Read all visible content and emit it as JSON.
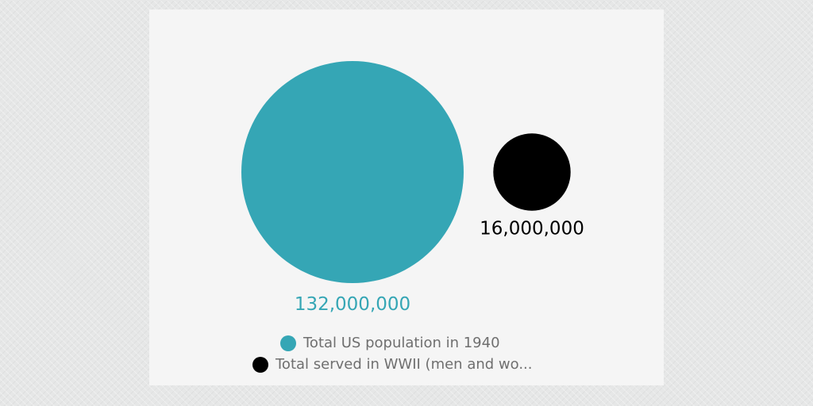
{
  "colors": {
    "population": "#35a6b5",
    "served": "#000000",
    "legend_text": "#6f6f6f",
    "card_bg": "#f5f5f5"
  },
  "chart_data": {
    "type": "bubble",
    "title": "",
    "xlabel": "",
    "ylabel": "",
    "series": [
      {
        "name": "Total US population in 1940",
        "value": 132000000,
        "value_label": "132,000,000",
        "color": "#35a6b5"
      },
      {
        "name": "Total served in WWII (men and wo...",
        "value": 16000000,
        "value_label": "16,000,000",
        "color": "#000000"
      }
    ],
    "legend": {
      "placement": "bottom",
      "entries": [
        "Total US population in 1940",
        "Total served in WWII (men and wo..."
      ]
    }
  }
}
